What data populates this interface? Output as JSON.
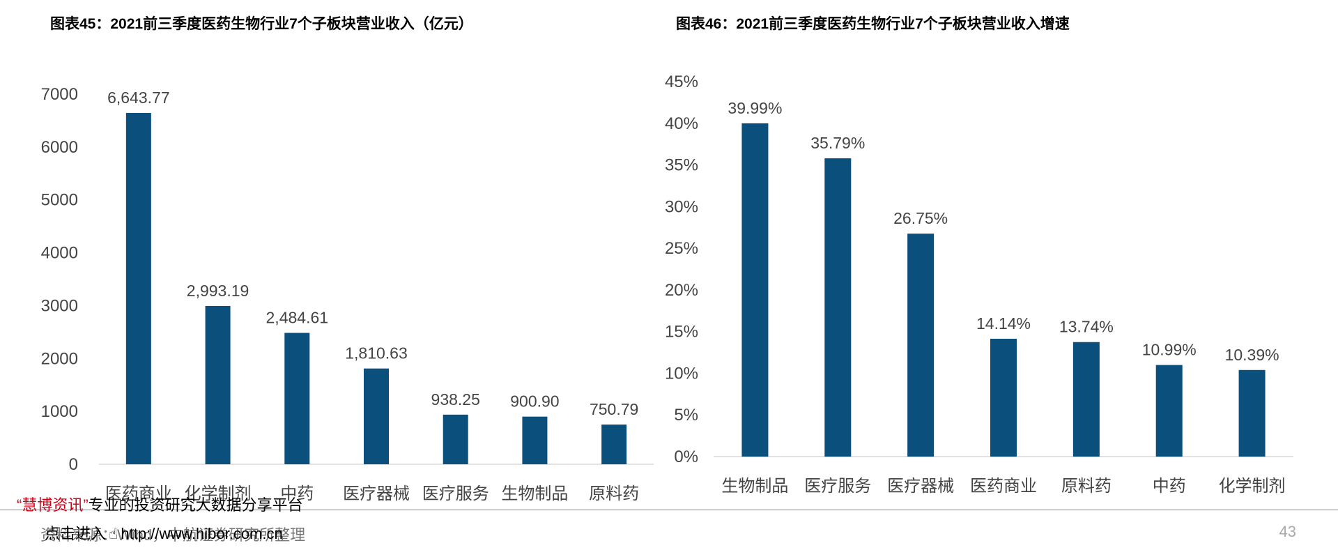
{
  "titles": {
    "left": "图表45：2021前三季度医药生物行业7个子板块营业收入（亿元）",
    "right": "图表46：2021前三季度医药生物行业7个子板块营业收入增速"
  },
  "footer": {
    "source": "资料来源：Wind，中航证券研究所整理",
    "page": "43"
  },
  "overlay": {
    "quote_open": "“",
    "brand": "慧博资讯",
    "quote_close": "”",
    "slogan": "专业的投资研究大数据分享平台",
    "click": "点击进入",
    "url": "http://www.hibor.com.cn"
  },
  "colors": {
    "bar": "#0b4f7c",
    "axis_text": "#444444",
    "baseline": "#d9d9d9"
  },
  "chart_data": [
    {
      "type": "bar",
      "title": "图表45：2021前三季度医药生物行业7个子板块营业收入（亿元）",
      "categories": [
        "医药商业",
        "化学制剂",
        "中药",
        "医疗器械",
        "医疗服务",
        "生物制品",
        "原料药"
      ],
      "values": [
        6643.77,
        2993.19,
        2484.61,
        1810.63,
        938.25,
        900.9,
        750.79
      ],
      "labels": [
        "6,643.77",
        "2,993.19",
        "2,484.61",
        "1,810.63",
        "938.25",
        "900.90",
        "750.79"
      ],
      "yticks": [
        "0",
        "1000",
        "2000",
        "3000",
        "4000",
        "5000",
        "6000",
        "7000"
      ],
      "ylim": [
        0,
        7000
      ],
      "grid": false,
      "legend": "none"
    },
    {
      "type": "bar",
      "title": "图表46：2021前三季度医药生物行业7个子板块营业收入增速",
      "categories": [
        "生物制品",
        "医疗服务",
        "医疗器械",
        "医药商业",
        "原料药",
        "中药",
        "化学制剂"
      ],
      "values": [
        39.99,
        35.79,
        26.75,
        14.14,
        13.74,
        10.99,
        10.39
      ],
      "labels": [
        "39.99%",
        "35.79%",
        "26.75%",
        "14.14%",
        "13.74%",
        "10.99%",
        "10.39%"
      ],
      "yticks": [
        "0%",
        "5%",
        "10%",
        "15%",
        "20%",
        "25%",
        "30%",
        "35%",
        "40%",
        "45%"
      ],
      "ylim": [
        0,
        45
      ],
      "grid": false,
      "legend": "none"
    }
  ]
}
